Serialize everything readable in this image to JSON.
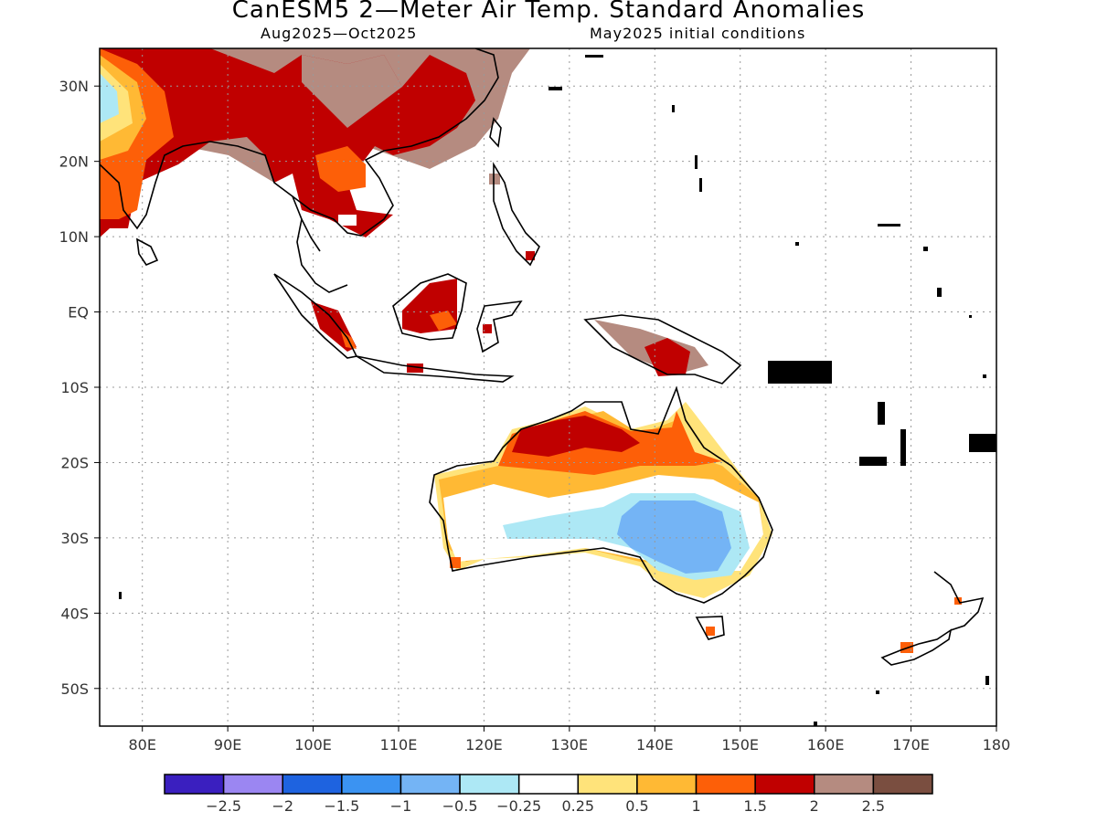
{
  "title": "CanESM5 2—Meter Air Temp. Standard Anomalies",
  "subtitle_left": "Aug2025—Oct2025",
  "subtitle_right": "May2025 initial conditions",
  "map": {
    "lon_range": [
      75,
      180
    ],
    "lat_range": [
      -55,
      35
    ],
    "lat_ticks": [
      {
        "value": 30,
        "label": "30N"
      },
      {
        "value": 20,
        "label": "20N"
      },
      {
        "value": 10,
        "label": "10N"
      },
      {
        "value": 0,
        "label": "EQ"
      },
      {
        "value": -10,
        "label": "10S"
      },
      {
        "value": -20,
        "label": "20S"
      },
      {
        "value": -30,
        "label": "30S"
      },
      {
        "value": -40,
        "label": "40S"
      },
      {
        "value": -50,
        "label": "50S"
      }
    ],
    "lon_ticks": [
      {
        "value": 80,
        "label": "80E"
      },
      {
        "value": 90,
        "label": "90E"
      },
      {
        "value": 100,
        "label": "100E"
      },
      {
        "value": 110,
        "label": "110E"
      },
      {
        "value": 120,
        "label": "120E"
      },
      {
        "value": 130,
        "label": "130E"
      },
      {
        "value": 140,
        "label": "140E"
      },
      {
        "value": 150,
        "label": "150E"
      },
      {
        "value": 160,
        "label": "160E"
      },
      {
        "value": 170,
        "label": "170E"
      },
      {
        "value": 180,
        "label": "180"
      }
    ],
    "grid": "dotted"
  },
  "legend": {
    "colors": [
      "#3a1fbf",
      "#9b86f2",
      "#1e63e0",
      "#3b93f2",
      "#74b4f5",
      "#ade8f5",
      "#ffffff",
      "#ffe37a",
      "#ffb934",
      "#fd5f08",
      "#c00000",
      "#b58b80",
      "#7a4e40"
    ],
    "labels": [
      "−2.5",
      "−2",
      "−1.5",
      "−1",
      "−0.5",
      "−0.25",
      "0.25",
      "0.5",
      "1",
      "1.5",
      "2",
      "2.5"
    ]
  }
}
